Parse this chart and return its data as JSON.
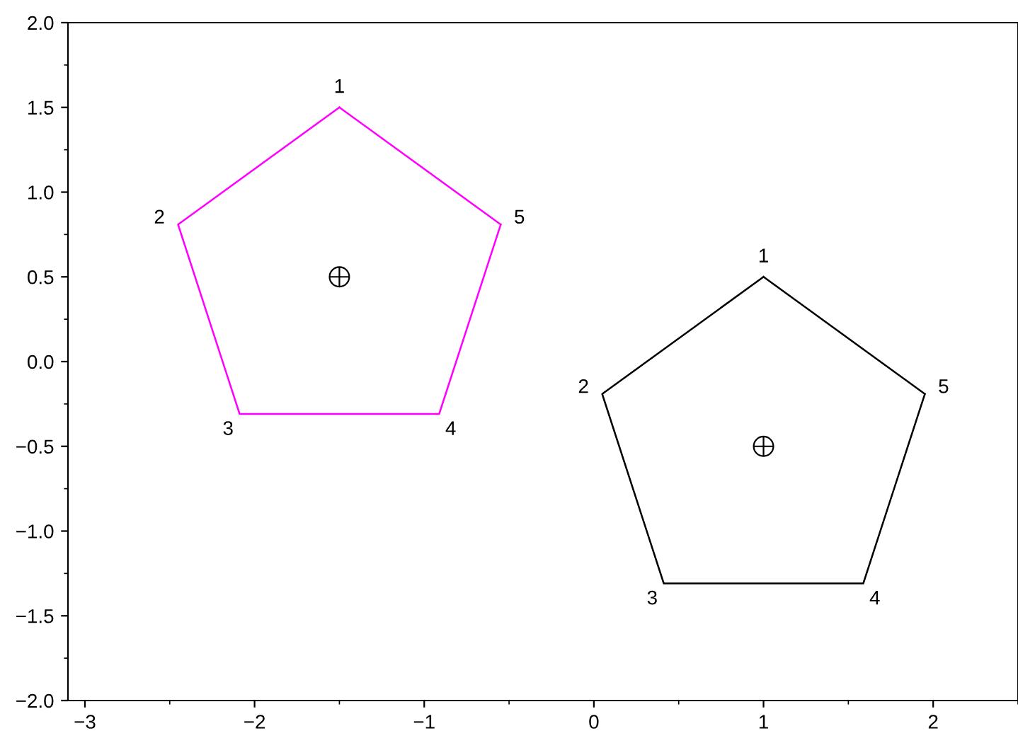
{
  "chart_data": {
    "type": "line",
    "series": [
      {
        "color": "#ff00ff",
        "x": [
          -1.5,
          -2.451,
          -2.088,
          -0.912,
          -0.549
        ],
        "values": [
          1.5,
          0.809,
          -0.309,
          -0.309,
          0.809
        ]
      },
      {
        "color": "#ff00ff",
        "x": [
          -0.549,
          -1.5
        ],
        "values": [
          0.809,
          1.5
        ]
      },
      {
        "color": "#000000",
        "x": [
          1.0,
          0.049,
          0.412,
          1.588,
          1.951
        ],
        "values": [
          0.5,
          -0.191,
          -1.309,
          -1.309,
          -0.191
        ]
      },
      {
        "color": "#000000",
        "x": [
          1.951,
          1.0
        ],
        "values": [
          -0.191,
          0.5
        ]
      },
      {
        "type": "scatter",
        "color": "#000000",
        "marker": "cross",
        "x": [
          -1.5,
          1.0
        ],
        "values": [
          0.5,
          -0.5
        ]
      }
    ],
    "annotations": [
      {
        "text": "1",
        "x": -1.5,
        "y": 1.5
      },
      {
        "text": "2",
        "x": -2.451,
        "y": 0.809
      },
      {
        "text": "3",
        "x": -2.088,
        "y": -0.309
      },
      {
        "text": "4",
        "x": -0.912,
        "y": -0.309
      },
      {
        "text": "5",
        "x": -0.549,
        "y": 0.809
      },
      {
        "text": "1",
        "x": 1.0,
        "y": 0.5
      },
      {
        "text": "2",
        "x": 0.049,
        "y": -0.191
      },
      {
        "text": "3",
        "x": 0.412,
        "y": -1.309
      },
      {
        "text": "4",
        "x": 1.588,
        "y": -1.309
      },
      {
        "text": "5",
        "x": 1.951,
        "y": -0.191
      }
    ],
    "xlim": [
      -3.1,
      2.5
    ],
    "ylim": [
      -2.0,
      2.0
    ],
    "xticks": [
      {
        "value": -3,
        "label": "−3"
      },
      {
        "value": -2,
        "label": "−2"
      },
      {
        "value": -1,
        "label": "−1"
      },
      0,
      1,
      2
    ],
    "yticks": [
      {
        "value": -2.0,
        "label": "−2.0"
      },
      {
        "value": -1.5,
        "label": "−1.5"
      },
      {
        "value": -1.0,
        "label": "−1.0"
      },
      {
        "value": -0.5,
        "label": "−0.5"
      },
      {
        "value": 0.0,
        "label": "0.0"
      },
      {
        "value": 0.5,
        "label": "0.5"
      },
      {
        "value": 1.0,
        "label": "1.0"
      },
      {
        "value": 1.5,
        "label": "1.5"
      },
      {
        "value": 2.0,
        "label": "2.0"
      }
    ],
    "grid": false,
    "legend": false,
    "line_style": "solid"
  }
}
